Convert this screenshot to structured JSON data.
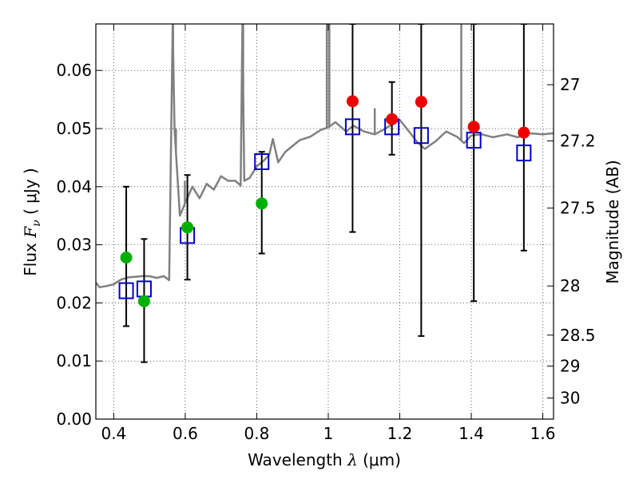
{
  "chart_data": {
    "type": "scatter",
    "xlabel": {
      "prefix": "Wavelength  ",
      "symbol": "λ",
      "unit": " (μm)"
    },
    "ylabel": {
      "prefix": "Flux  ",
      "symbol": "F",
      "subscript": "ν",
      "unit": "  ( μJy )"
    },
    "ylabel_right": "Magnitude (AB)",
    "xlim": [
      0.35,
      1.63
    ],
    "ylim": [
      0.0,
      0.068
    ],
    "grid": true,
    "x_ticks": [
      {
        "v": 0.4,
        "label": "0.4"
      },
      {
        "v": 0.6,
        "label": "0.6"
      },
      {
        "v": 0.8,
        "label": "0.8"
      },
      {
        "v": 1.0,
        "label": "1"
      },
      {
        "v": 1.2,
        "label": "1.2"
      },
      {
        "v": 1.4,
        "label": "1.4"
      },
      {
        "v": 1.6,
        "label": "1.6"
      }
    ],
    "y_ticks": [
      {
        "v": 0.0,
        "label": "0.00"
      },
      {
        "v": 0.01,
        "label": "0.01"
      },
      {
        "v": 0.02,
        "label": "0.02"
      },
      {
        "v": 0.03,
        "label": "0.03"
      },
      {
        "v": 0.04,
        "label": "0.04"
      },
      {
        "v": 0.05,
        "label": "0.05"
      },
      {
        "v": 0.06,
        "label": "0.06"
      }
    ],
    "mag_ticks": [
      {
        "label": "27",
        "mag": 27.0
      },
      {
        "label": "27.2",
        "mag": 27.2
      },
      {
        "label": "27.5",
        "mag": 27.5
      },
      {
        "label": "28",
        "mag": 28.0
      },
      {
        "label": "28.5",
        "mag": 28.5
      },
      {
        "label": "29",
        "mag": 29.0
      },
      {
        "label": "30",
        "mag": 30.0
      }
    ],
    "colors": {
      "sed": "#808080",
      "green": "#00b000",
      "red": "#ee0000",
      "model": "#0000cc",
      "error": "#000000"
    },
    "sed_model": {
      "x": [
        0.35,
        0.36,
        0.38,
        0.4,
        0.42,
        0.44,
        0.46,
        0.48,
        0.5,
        0.52,
        0.54,
        0.555,
        0.565,
        0.57,
        0.575,
        0.585,
        0.6,
        0.62,
        0.64,
        0.66,
        0.68,
        0.7,
        0.72,
        0.74,
        0.755,
        0.76,
        0.765,
        0.78,
        0.8,
        0.82,
        0.835,
        0.845,
        0.86,
        0.88,
        0.9,
        0.92,
        0.95,
        0.98,
        1.0,
        1.02,
        1.05,
        1.07,
        1.1,
        1.13,
        1.16,
        1.2,
        1.25,
        1.27,
        1.3,
        1.33,
        1.36,
        1.38,
        1.4,
        1.43,
        1.46,
        1.5,
        1.53,
        1.56,
        1.6,
        1.63
      ],
      "y": [
        0.0235,
        0.0227,
        0.0229,
        0.0232,
        0.024,
        0.0244,
        0.0245,
        0.0246,
        0.0246,
        0.0243,
        0.0246,
        0.0239,
        0.068,
        0.05,
        0.045,
        0.035,
        0.0372,
        0.04,
        0.038,
        0.0405,
        0.0395,
        0.0418,
        0.041,
        0.041,
        0.0402,
        0.068,
        0.041,
        0.0415,
        0.0435,
        0.0445,
        0.0455,
        0.0482,
        0.0442,
        0.046,
        0.047,
        0.048,
        0.0486,
        0.0498,
        0.0502,
        0.0511,
        0.0495,
        0.0505,
        0.0495,
        0.049,
        0.05,
        0.0515,
        0.0476,
        0.0465,
        0.0478,
        0.0495,
        0.0486,
        0.0475,
        0.0488,
        0.049,
        0.0485,
        0.049,
        0.0485,
        0.0492,
        0.049,
        0.0492
      ]
    },
    "emission_lines": [
      {
        "x": 0.566,
        "y": 0.068
      },
      {
        "x": 0.574,
        "y": 0.05
      },
      {
        "x": 0.599,
        "y": 0.041
      },
      {
        "x": 0.762,
        "y": 0.068
      },
      {
        "x": 0.845,
        "y": 0.0482
      },
      {
        "x": 0.996,
        "y": 0.068
      },
      {
        "x": 1.003,
        "y": 0.068
      },
      {
        "x": 1.13,
        "y": 0.0535
      },
      {
        "x": 1.372,
        "y": 0.068
      }
    ],
    "green_points": [
      {
        "x": 0.435,
        "y": 0.0278,
        "yerr_low": 0.016,
        "yerr_high": 0.04
      },
      {
        "x": 0.485,
        "y": 0.0203,
        "yerr_low": 0.0098,
        "yerr_high": 0.031
      },
      {
        "x": 0.606,
        "y": 0.033,
        "yerr_low": 0.024,
        "yerr_high": 0.042
      },
      {
        "x": 0.814,
        "y": 0.0371,
        "yerr_low": 0.0285,
        "yerr_high": 0.046
      }
    ],
    "red_points": [
      {
        "x": 1.068,
        "y": 0.0547,
        "yerr_low": 0.0322,
        "yerr_high": 0.068
      },
      {
        "x": 1.178,
        "y": 0.0516,
        "yerr_low": 0.0455,
        "yerr_high": 0.058
      },
      {
        "x": 1.26,
        "y": 0.0546,
        "yerr_low": 0.0143,
        "yerr_high": 0.068
      },
      {
        "x": 1.407,
        "y": 0.0503,
        "yerr_low": 0.0203,
        "yerr_high": 0.068
      },
      {
        "x": 1.547,
        "y": 0.0493,
        "yerr_low": 0.029,
        "yerr_high": 0.068
      }
    ],
    "model_points": [
      {
        "x": 0.435,
        "y": 0.0221
      },
      {
        "x": 0.485,
        "y": 0.0224
      },
      {
        "x": 0.606,
        "y": 0.0316
      },
      {
        "x": 0.814,
        "y": 0.0443
      },
      {
        "x": 1.068,
        "y": 0.0503
      },
      {
        "x": 1.178,
        "y": 0.0503
      },
      {
        "x": 1.26,
        "y": 0.0488
      },
      {
        "x": 1.407,
        "y": 0.048
      },
      {
        "x": 1.547,
        "y": 0.0458
      }
    ]
  }
}
